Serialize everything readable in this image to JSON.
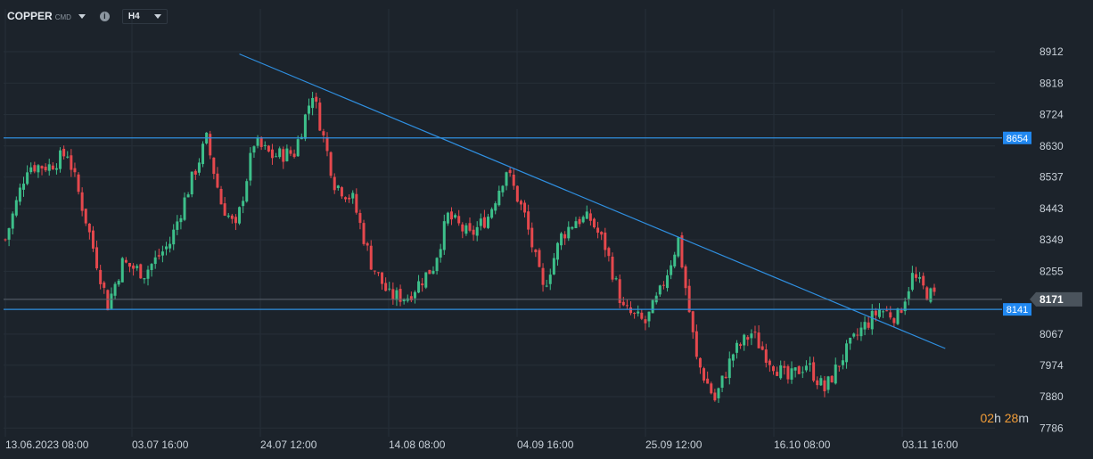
{
  "toolbar": {
    "symbol": "COPPER",
    "symbol_sub": "CMD",
    "info_icon": "info-icon",
    "timeframe": "H4"
  },
  "timer": {
    "hours": "02",
    "h_unit": "h",
    "minutes": "28",
    "m_unit": "m"
  },
  "colors": {
    "background": "#1c232b",
    "grid": "#262f38",
    "up": "#3dbf8a",
    "down": "#e5484d",
    "level_line": "#2f8fe0",
    "level_badge": "#2188f0",
    "current_badge": "#4a535c",
    "timer_accent": "#f29d38"
  },
  "chart_data": {
    "type": "candlestick",
    "y_ticks": [
      8912,
      8818,
      8724,
      8630,
      8537,
      8443,
      8349,
      8255,
      8171,
      8067,
      7974,
      7880,
      7786
    ],
    "x_ticks": [
      "13.06.2023  08:00",
      "03.07  16:00",
      "24.07  12:00",
      "14.08  08:00",
      "04.09  16:00",
      "25.09  12:00",
      "16.10  08:00",
      "03.11  16:00"
    ],
    "ylim": [
      7760,
      8960
    ],
    "bar_count": 255,
    "levels": [
      {
        "value": 8654,
        "label": "8654"
      },
      {
        "value": 8141,
        "label": "8141"
      }
    ],
    "current_price": {
      "value": 8171,
      "label": "8171"
    },
    "trendline": {
      "from": {
        "bar": 64,
        "price": 8905
      },
      "to": {
        "bar": 257,
        "price": 8024
      }
    },
    "anchors": [
      [
        0,
        8350
      ],
      [
        6,
        8570
      ],
      [
        12,
        8570
      ],
      [
        17,
        8610
      ],
      [
        22,
        8410
      ],
      [
        28,
        8155
      ],
      [
        32,
        8280
      ],
      [
        38,
        8250
      ],
      [
        45,
        8340
      ],
      [
        50,
        8500
      ],
      [
        55,
        8650
      ],
      [
        59,
        8460
      ],
      [
        63,
        8380
      ],
      [
        68,
        8640
      ],
      [
        73,
        8600
      ],
      [
        79,
        8610
      ],
      [
        84,
        8790
      ],
      [
        90,
        8520
      ],
      [
        95,
        8470
      ],
      [
        100,
        8280
      ],
      [
        105,
        8180
      ],
      [
        110,
        8180
      ],
      [
        117,
        8270
      ],
      [
        121,
        8420
      ],
      [
        127,
        8360
      ],
      [
        132,
        8420
      ],
      [
        137,
        8560
      ],
      [
        142,
        8420
      ],
      [
        147,
        8200
      ],
      [
        152,
        8360
      ],
      [
        156,
        8410
      ],
      [
        160,
        8410
      ],
      [
        164,
        8330
      ],
      [
        169,
        8140
      ],
      [
        175,
        8100
      ],
      [
        179,
        8190
      ],
      [
        184,
        8350
      ],
      [
        189,
        7990
      ],
      [
        194,
        7870
      ],
      [
        199,
        8010
      ],
      [
        204,
        8070
      ],
      [
        209,
        7990
      ],
      [
        214,
        7930
      ],
      [
        219,
        7980
      ],
      [
        224,
        7900
      ],
      [
        229,
        8000
      ],
      [
        234,
        8080
      ],
      [
        239,
        8140
      ],
      [
        244,
        8120
      ],
      [
        248,
        8240
      ],
      [
        252,
        8190
      ],
      [
        254,
        8180
      ]
    ]
  }
}
